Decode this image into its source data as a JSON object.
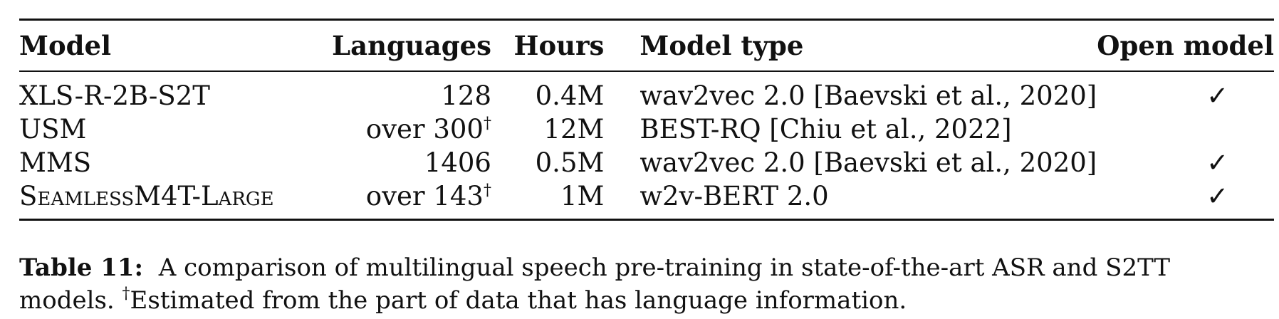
{
  "table": {
    "headers": {
      "model": "Model",
      "languages": "Languages",
      "hours": "Hours",
      "model_type": "Model type",
      "open_model": "Open model"
    },
    "rows": [
      {
        "model": "XLS-R-2B-S2T",
        "languages": "128",
        "languages_mark": "",
        "hours": "0.4M",
        "model_type": "wav2vec 2.0 [Baevski et al., 2020]",
        "open_model": "✓"
      },
      {
        "model": "USM",
        "languages": "over 300",
        "languages_mark": "†",
        "hours": "12M",
        "model_type": "BEST-RQ [Chiu et al., 2022]",
        "open_model": ""
      },
      {
        "model": "MMS",
        "languages": "1406",
        "languages_mark": "",
        "hours": "0.5M",
        "model_type": "wav2vec 2.0 [Baevski et al., 2020]",
        "open_model": "✓"
      },
      {
        "model": "SeamlessM4T-Large",
        "languages": "over 143",
        "languages_mark": "†",
        "hours": "1M",
        "model_type": "w2v-BERT 2.0",
        "open_model": "✓"
      }
    ]
  },
  "caption": {
    "label": "Table 11:",
    "text": "A comparison of multilingual speech pre-training in state-of-the-art ASR and S2TT models.",
    "footnote_mark": "†",
    "footnote": "Estimated from the part of data that has language information."
  }
}
